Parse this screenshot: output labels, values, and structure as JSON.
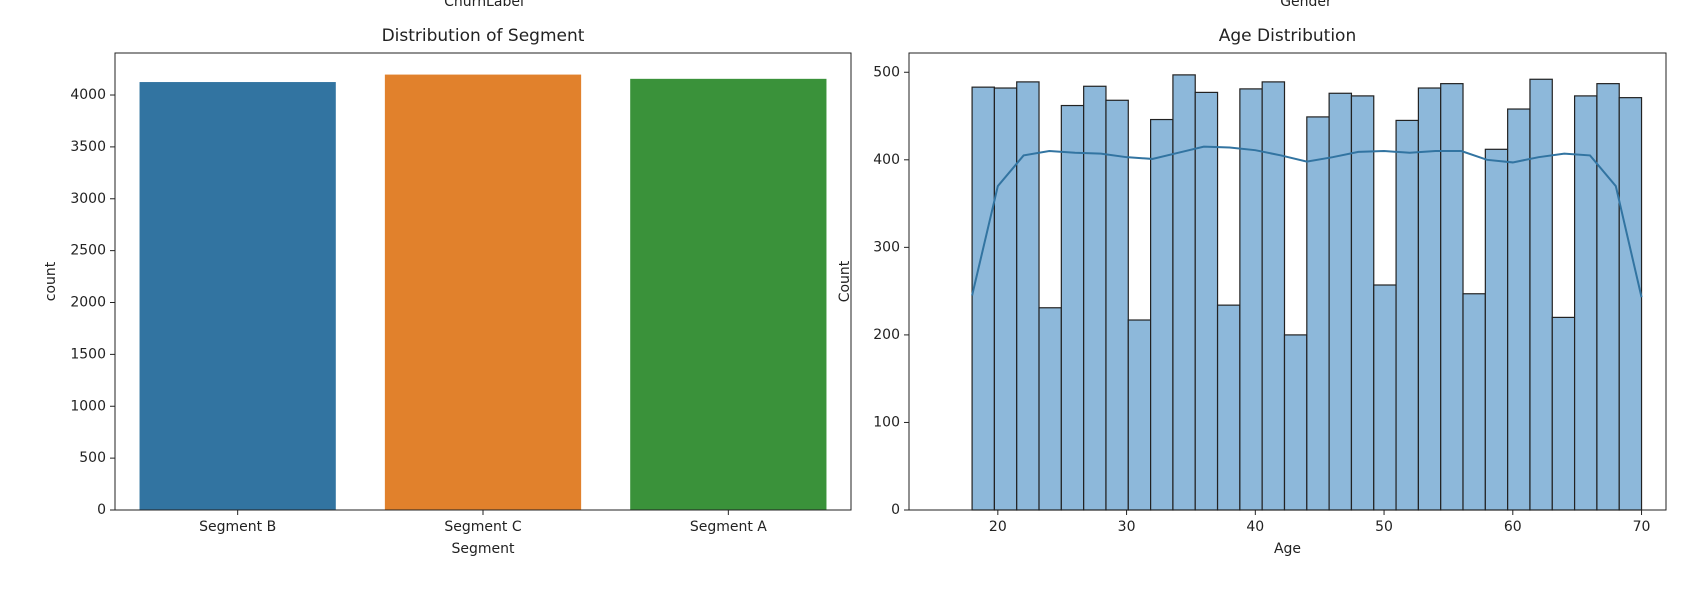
{
  "fragments": [
    "ChurnLabel",
    "Gender"
  ],
  "chart_data": [
    {
      "type": "bar",
      "title": "Distribution of Segment",
      "xlabel": "Segment",
      "ylabel": "count",
      "categories": [
        "Segment B",
        "Segment C",
        "Segment A"
      ],
      "values": [
        4125,
        4197,
        4156
      ],
      "colors": [
        "#3274a1",
        "#e1812c",
        "#3a923a"
      ],
      "ylim": [
        0,
        4405
      ],
      "yticks": [
        0,
        500,
        1000,
        1500,
        2000,
        2500,
        3000,
        3500,
        4000
      ]
    },
    {
      "type": "histogram",
      "title": "Age Distribution",
      "xlabel": "Age",
      "ylabel": "Count",
      "bins": [
        18,
        19.733,
        21.467,
        23.2,
        24.933,
        26.667,
        28.4,
        30.133,
        31.867,
        33.6,
        35.333,
        37.067,
        38.8,
        40.533,
        42.267,
        44,
        45.733,
        47.467,
        49.2,
        50.933,
        52.667,
        54.4,
        56.133,
        57.867,
        59.6,
        61.333,
        63.067,
        64.8,
        66.533,
        68.267,
        70
      ],
      "counts": [
        483,
        482,
        489,
        231,
        462,
        484,
        468,
        217,
        446,
        497,
        477,
        234,
        481,
        489,
        200,
        449,
        476,
        473,
        257,
        445,
        482,
        487,
        247,
        412,
        458,
        492,
        220,
        473,
        487,
        471
      ],
      "color": "#8db8da",
      "edgecolor": "#222222",
      "kde": {
        "color": "#3274a1",
        "x": [
          18,
          20,
          22,
          24,
          26,
          28,
          30,
          32,
          34,
          36,
          38,
          40,
          42,
          44,
          46,
          48,
          50,
          52,
          54,
          56,
          58,
          60,
          62,
          64,
          66,
          68,
          70
        ],
        "y": [
          245,
          370,
          405,
          410,
          408,
          407,
          403,
          401,
          408,
          415,
          414,
          411,
          405,
          398,
          403,
          409,
          410,
          408,
          410,
          410,
          400,
          397,
          403,
          407,
          405,
          370,
          243
        ]
      },
      "xlim": [
        13.1,
        71.9
      ],
      "xticks": [
        20,
        30,
        40,
        50,
        60,
        70
      ],
      "ylim": [
        0,
        522
      ],
      "yticks": [
        0,
        100,
        200,
        300,
        400,
        500
      ]
    }
  ]
}
